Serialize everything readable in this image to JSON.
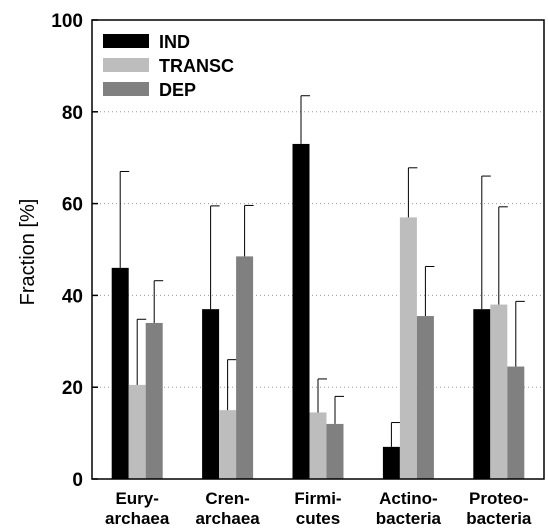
{
  "chart_data": {
    "type": "bar",
    "categories": [
      [
        "Eury-",
        "archaea"
      ],
      [
        "Cren-",
        "archaea"
      ],
      [
        "Firmi-",
        "cutes"
      ],
      [
        "Actino-",
        "bacteria"
      ],
      [
        "Proteo-",
        "bacteria"
      ]
    ],
    "series": [
      {
        "name": "IND",
        "color": "#000000",
        "values": [
          46,
          37,
          73,
          7,
          37
        ],
        "errors": [
          21,
          22.5,
          10.5,
          5.3,
          29
        ]
      },
      {
        "name": "TRANSC",
        "color": "#bdbdbd",
        "values": [
          20.5,
          15,
          14.5,
          57,
          38
        ],
        "errors": [
          14.3,
          11,
          7.3,
          10.8,
          21.3
        ]
      },
      {
        "name": "DEP",
        "color": "#808080",
        "values": [
          34,
          48.5,
          12,
          35.5,
          24.5
        ],
        "errors": [
          9.2,
          11.1,
          6,
          10.8,
          14.2
        ]
      }
    ],
    "title": "",
    "xlabel": "",
    "ylabel": "Fraction [%]",
    "ylim": [
      0,
      100
    ],
    "yticks": [
      0,
      20,
      40,
      60,
      80,
      100
    ],
    "grid": "horizontal dotted",
    "legend": "top-left"
  }
}
